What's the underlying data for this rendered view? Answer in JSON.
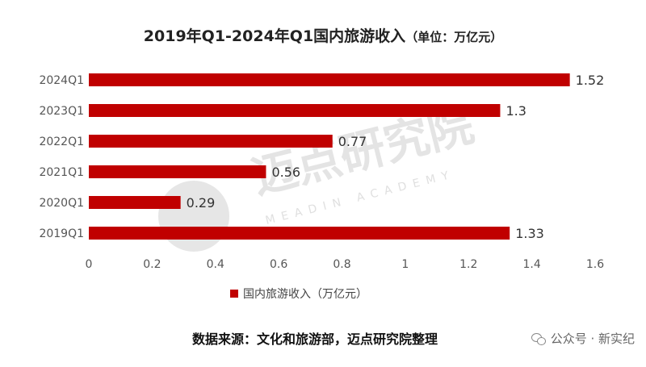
{
  "title": {
    "main": "2019年Q1-2024年Q1国内旅游收入",
    "unit": "（单位：万亿元）"
  },
  "watermark": {
    "cn": "迈点研究院",
    "en": "MEADIN ACADEMY"
  },
  "source": "数据来源：文化和旅游部，迈点研究院整理",
  "wechat": {
    "label": "公众号 · 新实纪",
    "icon": "wechat-icon"
  },
  "colors": {
    "bar": "#c00000",
    "axis_text": "#555555",
    "watermark": "#d9d9d9"
  },
  "chart_data": {
    "type": "bar",
    "orientation": "horizontal",
    "categories": [
      "2024Q1",
      "2023Q1",
      "2022Q1",
      "2021Q1",
      "2020Q1",
      "2019Q1"
    ],
    "series": [
      {
        "name": "国内旅游收入（万亿元）",
        "values": [
          1.52,
          1.3,
          0.77,
          0.56,
          0.29,
          1.33
        ],
        "labels": [
          "1.52",
          "1.3",
          "0.77",
          "0.56",
          "0.29",
          "1.33"
        ]
      }
    ],
    "xlim": [
      0,
      1.6
    ],
    "xticks": [
      "0",
      "0.2",
      "0.4",
      "0.6",
      "0.8",
      "1",
      "1.2",
      "1.4",
      "1.6"
    ],
    "grid": false,
    "legend_position": "bottom"
  }
}
